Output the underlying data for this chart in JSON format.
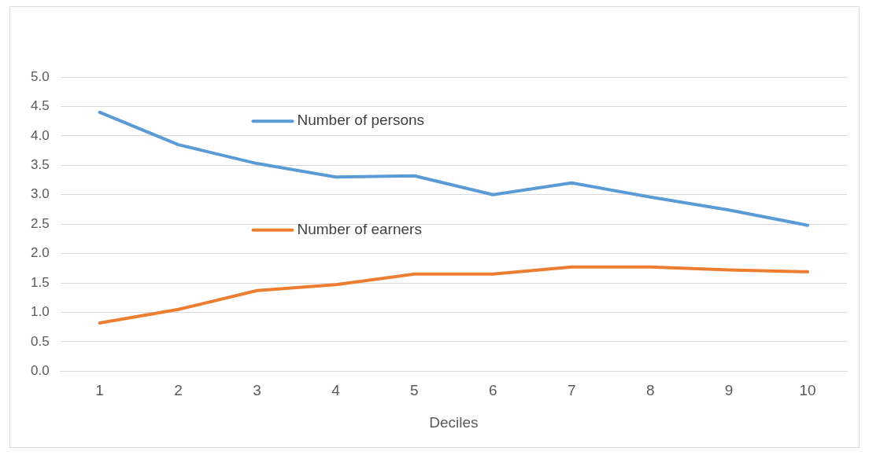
{
  "chart_data": {
    "type": "line",
    "xlabel": "Deciles",
    "categories": [
      "1",
      "2",
      "3",
      "4",
      "5",
      "6",
      "7",
      "8",
      "9",
      "10"
    ],
    "series": [
      {
        "name": "Number of persons",
        "color": "#5b9bd5",
        "values": [
          4.4,
          3.85,
          3.53,
          3.3,
          3.32,
          3.0,
          3.2,
          2.96,
          2.74,
          2.48
        ]
      },
      {
        "name": "Number of earners",
        "color": "#ed7d31",
        "values": [
          0.82,
          1.05,
          1.37,
          1.47,
          1.65,
          1.65,
          1.77,
          1.77,
          1.72,
          1.69
        ]
      }
    ],
    "ylim": [
      0,
      5
    ],
    "yticks": [
      {
        "value": 0,
        "label": "0.0"
      },
      {
        "value": 0.5,
        "label": "0.5"
      },
      {
        "value": 1,
        "label": "1.0"
      },
      {
        "value": 1.5,
        "label": "1.5"
      },
      {
        "value": 2,
        "label": "2.0"
      },
      {
        "value": 2.5,
        "label": "2.5"
      },
      {
        "value": 3,
        "label": "3.0"
      },
      {
        "value": 3.5,
        "label": "3.5"
      },
      {
        "value": 4,
        "label": "4.0"
      },
      {
        "value": 4.5,
        "label": "4.5"
      },
      {
        "value": 5,
        "label": "5.0"
      }
    ],
    "grid": "y",
    "legend": "top",
    "marker": "none",
    "line_style": "solid"
  }
}
